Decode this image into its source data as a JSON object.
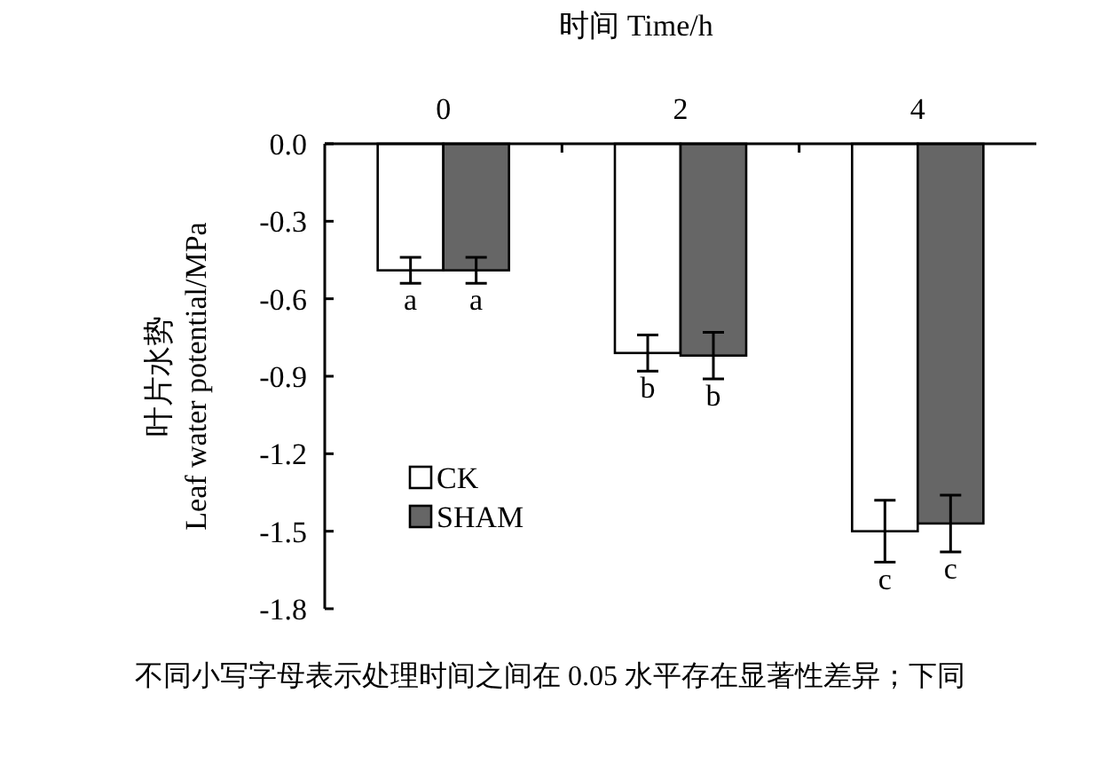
{
  "chart_data": {
    "type": "bar",
    "xlabel": "时间 Time/h",
    "ylabel": "叶片水势\nLeaf water potential/MPa",
    "categories": [
      "0",
      "2",
      "4"
    ],
    "series": [
      {
        "name": "CK",
        "color": "#ffffff",
        "values": [
          -0.49,
          -0.81,
          -1.5
        ],
        "errors": [
          0.05,
          0.07,
          0.12
        ]
      },
      {
        "name": "SHAM",
        "color": "#666666",
        "values": [
          -0.49,
          -0.82,
          -1.47
        ],
        "errors": [
          0.05,
          0.09,
          0.11
        ]
      }
    ],
    "ylim": [
      -1.8,
      0
    ],
    "yticks": [
      {
        "value": 0,
        "label": "0.0"
      },
      -0.3,
      -0.6,
      -0.9,
      -1.2,
      -1.5,
      -1.8
    ],
    "legend": "left",
    "annotations": [
      {
        "text": "a",
        "x": "0",
        "y": -0.49
      },
      {
        "text": "a",
        "x": "0",
        "y": -0.49
      },
      {
        "text": "b",
        "x": "2",
        "y": -0.81
      },
      {
        "text": "b",
        "x": "2",
        "y": -0.82
      },
      {
        "text": "c",
        "x": "4",
        "y": -1.5
      },
      {
        "text": "c",
        "x": "4",
        "y": -1.47
      },
      "不同小写字母表示处理时间之间在 0.05 水平存在显著性差异；下同"
    ]
  }
}
